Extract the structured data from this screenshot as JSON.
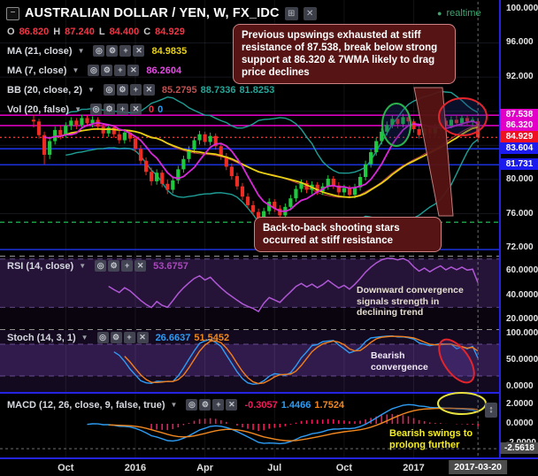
{
  "header": {
    "collapse_glyph": "−",
    "title": "AUSTRALIAN DOLLAR / YEN, W, FX_IDC",
    "ohlc": {
      "o_label": "O",
      "o": "86.820",
      "h_label": "H",
      "h": "87.240",
      "l_label": "L",
      "l": "84.400",
      "c_label": "C",
      "c": "84.929"
    },
    "realtime_label": "realtime",
    "realtime_dot": "●"
  },
  "icons": {
    "dropdown": "▼",
    "buttons": [
      {
        "name": "visibility-icon",
        "glyph": "◎"
      },
      {
        "name": "settings-icon",
        "glyph": "⚙"
      },
      {
        "name": "add-icon",
        "glyph": "+"
      },
      {
        "name": "close-icon",
        "glyph": "✕"
      }
    ],
    "header_buttons": [
      {
        "name": "grid-style-icon",
        "glyph": "⊞"
      },
      {
        "name": "detach-icon",
        "glyph": "✕"
      }
    ],
    "updown_glyph": "↕"
  },
  "indicators": {
    "ma21": {
      "label": "MA (21, close)",
      "value": "84.9835"
    },
    "ma7": {
      "label": "MA (7, close)",
      "value": "86.2604"
    },
    "bb": {
      "label": "BB (20, close, 2)",
      "v1": "85.2795",
      "v2": "88.7336",
      "v3": "81.8253"
    },
    "vol": {
      "label": "Vol (20, false)",
      "v1": "0",
      "v2": "0"
    },
    "rsi": {
      "label": "RSI (14, close)",
      "value": "53.6757"
    },
    "stoch": {
      "label": "Stoch (14, 3, 1)",
      "v1": "26.6637",
      "v2": "51.5452"
    },
    "macd": {
      "label": "MACD (12, 26, close, 9, false, true)",
      "v1": "-0.3057",
      "v2": "1.4466",
      "v3": "1.7524"
    }
  },
  "annotations": {
    "top_note": "Previous upswings exhausted at stiff resistance of 87.538, break below strong support at 86.320 & 7WMA likely to drag price declines",
    "mid_note": "Back-to-back shooting stars occurred at stiff resistance",
    "rsi_note": "Downward convergence signals strength in declining trend",
    "stoch_note": "Bearish convergence",
    "macd_note": "Bearish swings to prolong further"
  },
  "colors": {
    "up": "#1fc93f",
    "down": "#ed2d24",
    "bb": "#1e9e96",
    "bb_basis": "#b23a3a",
    "ma21": "#e8d013",
    "ma7": "#d928d9",
    "rsi": "#b057d6",
    "stoch_k": "#2d9cf4",
    "stoch_d": "#f07f1f",
    "macd_hist": "#ee1c5c",
    "macd_line": "#2d9cf4",
    "macd_signal": "#f0881f",
    "level_magenta": "#ff00de",
    "level_blue": "#1d36f0",
    "current_red": "#f03030",
    "axis_blue": "#2323e0",
    "badge_magenta": "#e200c8",
    "badge_red": "#ee1122",
    "badge_blue": "#1b1bf0"
  },
  "chart_data": {
    "type": "candlestick",
    "symbol": "AUSTRALIAN DOLLAR / YEN",
    "interval": "W",
    "feed": "FX_IDC",
    "ylim": [
      71.5,
      100.5
    ],
    "candles": [
      [
        87.0,
        87.6,
        86.1,
        86.8
      ],
      [
        86.8,
        87.1,
        84.8,
        85.2
      ],
      [
        85.2,
        85.6,
        81.8,
        82.9
      ],
      [
        82.9,
        84.9,
        82.4,
        84.5
      ],
      [
        84.5,
        86.2,
        84.1,
        85.8
      ],
      [
        85.8,
        86.3,
        84.7,
        85.2
      ],
      [
        85.2,
        86.7,
        84.9,
        86.3
      ],
      [
        86.3,
        87.3,
        85.8,
        86.9
      ],
      [
        86.9,
        87.2,
        85.9,
        86.4
      ],
      [
        86.4,
        87.6,
        86.0,
        87.2
      ],
      [
        87.2,
        87.5,
        86.2,
        86.6
      ],
      [
        86.6,
        87.4,
        86.1,
        87.0
      ],
      [
        87.0,
        87.3,
        85.8,
        86.2
      ],
      [
        86.2,
        86.6,
        85.0,
        85.4
      ],
      [
        85.4,
        86.5,
        85.0,
        86.1
      ],
      [
        86.1,
        86.4,
        84.9,
        85.3
      ],
      [
        85.3,
        85.7,
        84.2,
        84.6
      ],
      [
        84.6,
        85.9,
        84.2,
        85.5
      ],
      [
        85.5,
        85.8,
        84.4,
        84.8
      ],
      [
        84.8,
        85.1,
        83.2,
        83.6
      ],
      [
        83.6,
        84.0,
        81.8,
        82.2
      ],
      [
        82.2,
        82.6,
        80.5,
        80.9
      ],
      [
        80.9,
        81.4,
        79.3,
        79.8
      ],
      [
        79.8,
        81.2,
        79.4,
        80.8
      ],
      [
        80.8,
        81.1,
        79.1,
        79.5
      ],
      [
        79.5,
        80.0,
        78.3,
        78.8
      ],
      [
        78.8,
        80.3,
        78.4,
        79.9
      ],
      [
        79.9,
        81.6,
        79.5,
        81.2
      ],
      [
        81.2,
        82.8,
        80.8,
        82.4
      ],
      [
        82.4,
        83.9,
        82.0,
        83.5
      ],
      [
        83.5,
        85.0,
        83.1,
        84.6
      ],
      [
        84.6,
        85.7,
        84.1,
        85.3
      ],
      [
        85.3,
        85.6,
        84.0,
        84.4
      ],
      [
        84.4,
        85.5,
        84.0,
        85.1
      ],
      [
        85.1,
        85.4,
        83.5,
        83.9
      ],
      [
        83.9,
        84.3,
        82.3,
        82.7
      ],
      [
        82.7,
        83.1,
        81.1,
        81.5
      ],
      [
        81.5,
        81.9,
        80.0,
        80.4
      ],
      [
        80.4,
        80.8,
        78.8,
        79.2
      ],
      [
        79.2,
        79.6,
        77.6,
        78.0
      ],
      [
        78.0,
        78.4,
        76.6,
        77.0
      ],
      [
        77.0,
        77.5,
        75.8,
        76.2
      ],
      [
        76.2,
        76.6,
        73.9,
        74.9
      ],
      [
        74.9,
        76.7,
        74.5,
        76.3
      ],
      [
        76.3,
        77.8,
        75.9,
        77.4
      ],
      [
        77.4,
        77.7,
        76.2,
        76.6
      ],
      [
        76.6,
        77.0,
        75.2,
        75.8
      ],
      [
        75.8,
        77.2,
        75.4,
        76.8
      ],
      [
        76.8,
        78.2,
        76.4,
        77.8
      ],
      [
        77.8,
        79.3,
        77.4,
        78.9
      ],
      [
        78.9,
        80.0,
        78.5,
        79.6
      ],
      [
        79.6,
        79.9,
        78.4,
        78.8
      ],
      [
        78.8,
        79.8,
        78.3,
        79.4
      ],
      [
        79.4,
        79.7,
        78.2,
        78.6
      ],
      [
        78.6,
        79.6,
        78.2,
        79.2
      ],
      [
        79.2,
        80.5,
        78.8,
        80.1
      ],
      [
        80.1,
        80.4,
        78.9,
        79.3
      ],
      [
        79.3,
        79.7,
        78.1,
        78.5
      ],
      [
        78.5,
        79.4,
        78.1,
        79.0
      ],
      [
        79.0,
        79.3,
        77.8,
        78.2
      ],
      [
        78.2,
        79.5,
        77.8,
        79.1
      ],
      [
        79.1,
        80.7,
        78.7,
        80.3
      ],
      [
        80.3,
        82.2,
        79.9,
        81.8
      ],
      [
        81.8,
        83.6,
        81.4,
        83.2
      ],
      [
        83.2,
        84.9,
        82.8,
        84.5
      ],
      [
        84.5,
        86.0,
        84.1,
        85.6
      ],
      [
        85.6,
        86.8,
        85.2,
        86.4
      ],
      [
        86.4,
        87.5,
        86.0,
        87.1
      ],
      [
        87.1,
        87.4,
        86.0,
        86.5
      ],
      [
        86.5,
        87.7,
        86.1,
        87.3
      ],
      [
        87.3,
        87.6,
        86.3,
        86.8
      ],
      [
        86.8,
        87.1,
        85.5,
        85.9
      ],
      [
        85.9,
        86.3,
        84.8,
        85.2
      ],
      [
        85.2,
        86.4,
        84.9,
        86.0
      ],
      [
        86.0,
        86.3,
        85.0,
        85.4
      ],
      [
        85.4,
        86.6,
        85.1,
        86.2
      ],
      [
        86.2,
        87.3,
        85.8,
        86.9
      ],
      [
        86.9,
        87.2,
        85.9,
        86.3
      ],
      [
        86.3,
        87.4,
        86.0,
        87.0
      ],
      [
        87.0,
        87.5,
        86.2,
        86.6
      ],
      [
        86.6,
        87.5,
        86.3,
        87.2
      ],
      [
        87.2,
        87.5,
        86.4,
        86.8
      ],
      [
        86.8,
        87.3,
        86.3,
        87.0
      ],
      [
        86.82,
        87.24,
        84.4,
        84.93
      ]
    ],
    "levels": [
      {
        "price": 87.538,
        "color": "#ff00de",
        "dash": ""
      },
      {
        "price": 86.32,
        "color": "#ff00de",
        "dash": ""
      },
      {
        "price": 84.929,
        "color": "#f03030",
        "dash": "2,3"
      },
      {
        "price": 83.604,
        "color": "#1d36f0",
        "dash": ""
      },
      {
        "price": 81.731,
        "color": "#1d36f0",
        "dash": ""
      },
      {
        "price": 75.0,
        "color": "#1faa4b",
        "dash": "5,4"
      },
      {
        "price": 71.8,
        "color": "#1d36f0",
        "dash": ""
      }
    ],
    "time_ticks": [
      {
        "i": 6,
        "label": "Oct"
      },
      {
        "i": 19,
        "label": "2016"
      },
      {
        "i": 32,
        "label": "Apr"
      },
      {
        "i": 45,
        "label": "Jul"
      },
      {
        "i": 58,
        "label": "Oct"
      },
      {
        "i": 71,
        "label": "2017"
      }
    ],
    "price_ticks": [
      {
        "v": 100,
        "label": "100.000"
      },
      {
        "v": 96,
        "label": "96.000"
      },
      {
        "v": 92,
        "label": "92.000"
      },
      {
        "v": 80,
        "label": "80.000"
      },
      {
        "v": 76,
        "label": "76.000"
      },
      {
        "v": 72,
        "label": "72.000"
      }
    ],
    "price_badges": [
      {
        "v": 87.538,
        "label": "87.538",
        "bg": "#e200c8"
      },
      {
        "v": 86.32,
        "label": "86.320",
        "bg": "#e200c8"
      },
      {
        "v": 84.929,
        "label": "84.929",
        "bg": "#ee1122"
      },
      {
        "v": 83.604,
        "label": "83.604",
        "bg": "#1b1bf0"
      },
      {
        "v": 81.731,
        "label": "81.731",
        "bg": "#1b1bf0"
      }
    ],
    "rsi_ticks": [
      {
        "v": 60,
        "label": "60.0000"
      },
      {
        "v": 40,
        "label": "40.0000"
      },
      {
        "v": 20,
        "label": "20.0000"
      }
    ],
    "stoch_ticks": [
      {
        "v": 100,
        "label": "100.000"
      },
      {
        "v": 50,
        "label": "50.0000"
      },
      {
        "v": 0,
        "label": "0.0000"
      }
    ],
    "macd_ticks": [
      {
        "v": 2,
        "label": "2.0000"
      },
      {
        "v": 0,
        "label": "0.0000"
      },
      {
        "v": -2,
        "label": "-2.0000"
      }
    ],
    "crosshair": {
      "index": 83,
      "macd_value": -2.5618,
      "macd_value_label": "-2.5618",
      "date_label": "2017-03-20"
    }
  }
}
